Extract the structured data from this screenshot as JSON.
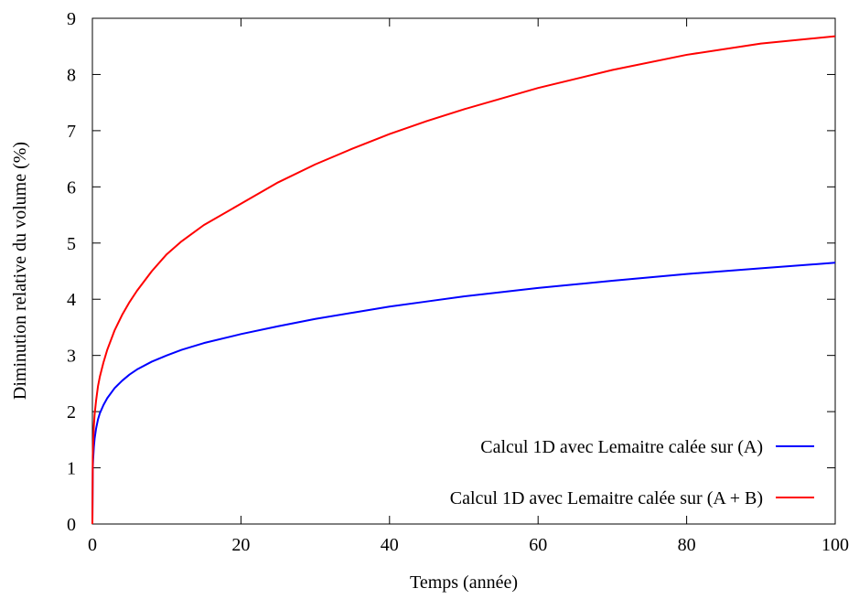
{
  "chart_data": {
    "type": "line",
    "title": "",
    "xlabel": "Temps (année)",
    "ylabel": "Diminution relative du volume (%)",
    "xlim": [
      0,
      100
    ],
    "ylim": [
      0,
      9
    ],
    "xticks": [
      0,
      20,
      40,
      60,
      80,
      100
    ],
    "yticks": [
      0,
      1,
      2,
      3,
      4,
      5,
      6,
      7,
      8,
      9
    ],
    "grid": false,
    "legend_position": "bottom-right",
    "series": [
      {
        "name": "Calcul 1D avec Lemaitre calée sur (A)",
        "color": "#0000ff",
        "x": [
          0,
          0.05,
          0.1,
          0.2,
          0.3,
          0.5,
          0.75,
          1,
          1.5,
          2,
          3,
          4,
          5,
          6,
          8,
          10,
          12,
          15,
          20,
          25,
          30,
          35,
          40,
          45,
          50,
          60,
          70,
          80,
          90,
          100
        ],
        "y": [
          0,
          1.0,
          1.15,
          1.37,
          1.52,
          1.7,
          1.86,
          1.97,
          2.12,
          2.24,
          2.42,
          2.55,
          2.66,
          2.75,
          2.89,
          3.0,
          3.1,
          3.22,
          3.38,
          3.52,
          3.65,
          3.76,
          3.87,
          3.96,
          4.05,
          4.2,
          4.33,
          4.45,
          4.55,
          4.65
        ]
      },
      {
        "name": "Calcul 1D avec Lemaitre calée sur (A + B)",
        "color": "#ff0000",
        "x": [
          0,
          0.05,
          0.1,
          0.2,
          0.3,
          0.5,
          0.75,
          1,
          1.5,
          2,
          3,
          4,
          5,
          6,
          8,
          10,
          12,
          15,
          20,
          25,
          30,
          35,
          40,
          45,
          50,
          60,
          70,
          80,
          90,
          100
        ],
        "y": [
          0,
          1.2,
          1.45,
          1.75,
          1.95,
          2.2,
          2.45,
          2.62,
          2.88,
          3.1,
          3.45,
          3.72,
          3.95,
          4.15,
          4.5,
          4.8,
          5.03,
          5.32,
          5.7,
          6.08,
          6.4,
          6.68,
          6.94,
          7.17,
          7.38,
          7.76,
          8.08,
          8.35,
          8.55,
          8.68
        ]
      }
    ]
  }
}
